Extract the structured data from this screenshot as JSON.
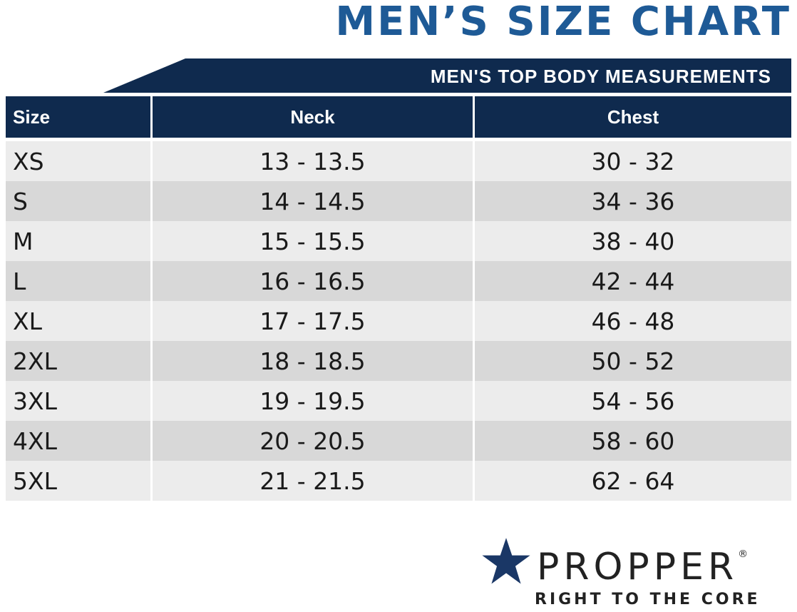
{
  "title": "MEN’S SIZE CHART",
  "banner": "MEN'S TOP BODY MEASUREMENTS",
  "table": {
    "headers": [
      "Size",
      "Neck",
      "Chest"
    ],
    "rows": [
      [
        "XS",
        "13 - 13.5",
        "30 - 32"
      ],
      [
        "S",
        "14 - 14.5",
        "34 - 36"
      ],
      [
        "M",
        "15 - 15.5",
        "38 - 40"
      ],
      [
        "L",
        "16 - 16.5",
        "42 - 44"
      ],
      [
        "XL",
        "17 - 17.5",
        "46 - 48"
      ],
      [
        "2XL",
        "18 - 18.5",
        "50 - 52"
      ],
      [
        "3XL",
        "19 - 19.5",
        "54 - 56"
      ],
      [
        "4XL",
        "20 - 20.5",
        "58 - 60"
      ],
      [
        "5XL",
        "21 - 21.5",
        "62 - 64"
      ]
    ]
  },
  "brand": {
    "name": "PROPPER",
    "trademark": "®",
    "tagline": "RIGHT TO THE CORE",
    "icon": "star-icon"
  },
  "colors": {
    "title": "#1e5a96",
    "header_bg": "#0f2a4e",
    "row_light": "#ececec",
    "row_dark": "#d8d8d8",
    "logo_star": "#1a3766"
  }
}
